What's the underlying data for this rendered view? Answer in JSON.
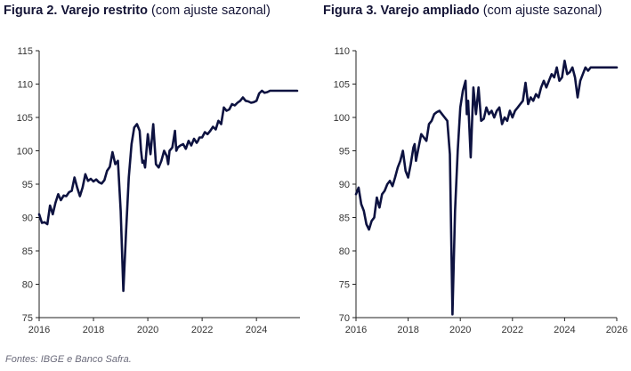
{
  "figures": [
    {
      "title_bold": "Figura 2. Varejo restrito",
      "title_rest": " (com ajuste sazonal)"
    },
    {
      "title_bold": "Figura 3. Varejo ampliado",
      "title_rest": " (com ajuste sazonal)"
    }
  ],
  "source": "Fontes: IBGE e Banco Safra.",
  "colors": {
    "line": "#0d1240",
    "axis": "#222222",
    "text": "#333333"
  },
  "chart_data": [
    {
      "type": "line",
      "title": "Figura 2. Varejo restrito (com ajuste sazonal)",
      "xlabel": "",
      "ylabel": "",
      "ylim": [
        75,
        115
      ],
      "xlim": [
        2016,
        2025.6
      ],
      "yticks": [
        75,
        80,
        85,
        90,
        95,
        100,
        105,
        110,
        115
      ],
      "xticks": [
        2016,
        2018,
        2020,
        2022,
        2024
      ],
      "grid": false,
      "series": [
        {
          "name": "Varejo restrito",
          "x": [
            2016.0,
            2016.1,
            2016.2,
            2016.3,
            2016.4,
            2016.5,
            2016.6,
            2016.7,
            2016.8,
            2016.9,
            2017.0,
            2017.1,
            2017.2,
            2017.3,
            2017.4,
            2017.5,
            2017.6,
            2017.7,
            2017.8,
            2017.9,
            2018.0,
            2018.1,
            2018.2,
            2018.3,
            2018.4,
            2018.5,
            2018.6,
            2018.7,
            2018.8,
            2018.9,
            2019.0,
            2019.1,
            2019.2,
            2019.3,
            2019.4,
            2019.5,
            2019.6,
            2019.7,
            2019.75,
            2019.8,
            2019.85,
            2019.9,
            2020.0,
            2020.1,
            2020.2,
            2020.3,
            2020.4,
            2020.5,
            2020.6,
            2020.7,
            2020.75,
            2020.8,
            2020.9,
            2021.0,
            2021.05,
            2021.1,
            2021.2,
            2021.3,
            2021.4,
            2021.5,
            2021.6,
            2021.7,
            2021.8,
            2021.85,
            2021.9,
            2022.0,
            2022.1,
            2022.2,
            2022.3,
            2022.4,
            2022.5,
            2022.6,
            2022.7,
            2022.8,
            2022.9,
            2023.0,
            2023.1,
            2023.2,
            2023.3,
            2023.4,
            2023.5,
            2023.6,
            2023.7,
            2023.8,
            2023.9,
            2024.0,
            2024.1,
            2024.2,
            2024.3,
            2024.4,
            2024.5,
            2024.6,
            2024.7,
            2024.8,
            2024.9,
            2025.0,
            2025.1,
            2025.2,
            2025.3,
            2025.4,
            2025.5
          ],
          "values": [
            90.5,
            89.2,
            89.3,
            89.0,
            91.8,
            90.5,
            92.2,
            93.5,
            92.6,
            93.3,
            93.2,
            93.8,
            94.0,
            96.0,
            94.5,
            93.2,
            94.5,
            96.5,
            95.5,
            95.8,
            95.4,
            95.7,
            95.3,
            95.1,
            95.6,
            97.0,
            97.6,
            99.8,
            98.0,
            98.5,
            91.0,
            79.0,
            88.0,
            96.0,
            101.0,
            103.5,
            104.0,
            103.0,
            100.0,
            98.2,
            98.5,
            97.5,
            102.5,
            99.5,
            104.0,
            98.0,
            97.5,
            98.5,
            100.0,
            99.2,
            98.0,
            100.0,
            100.5,
            103.0,
            100.0,
            100.5,
            100.8,
            101.0,
            100.3,
            101.5,
            100.8,
            101.8,
            101.2,
            101.5,
            102.0,
            102.0,
            102.8,
            102.5,
            103.0,
            103.6,
            103.2,
            104.5,
            104.0,
            106.5,
            106.0,
            106.2,
            107.0,
            106.8,
            107.2,
            107.5,
            108.0,
            107.5,
            107.4,
            107.2,
            107.3,
            107.5,
            108.6,
            109.0,
            108.7,
            108.8,
            109.0,
            109.0,
            109.0,
            109.0,
            109.0,
            109.0,
            109.0,
            109.0,
            109.0,
            109.0,
            109.0
          ]
        }
      ]
    },
    {
      "type": "line",
      "title": "Figura 3. Varejo ampliado (com ajuste sazonal)",
      "xlabel": "",
      "ylabel": "",
      "ylim": [
        70,
        110
      ],
      "xlim": [
        2016,
        2026
      ],
      "yticks": [
        70,
        75,
        80,
        85,
        90,
        95,
        100,
        105,
        110
      ],
      "xticks": [
        2016,
        2018,
        2020,
        2022,
        2024,
        2026
      ],
      "grid": false,
      "series": [
        {
          "name": "Varejo ampliado",
          "x": [
            2016.0,
            2016.1,
            2016.2,
            2016.3,
            2016.4,
            2016.5,
            2016.6,
            2016.7,
            2016.8,
            2016.9,
            2017.0,
            2017.1,
            2017.2,
            2017.3,
            2017.4,
            2017.5,
            2017.6,
            2017.7,
            2017.8,
            2017.9,
            2018.0,
            2018.1,
            2018.2,
            2018.25,
            2018.3,
            2018.4,
            2018.5,
            2018.6,
            2018.7,
            2018.8,
            2018.9,
            2019.0,
            2019.1,
            2019.2,
            2019.3,
            2019.4,
            2019.5,
            2019.6,
            2019.7,
            2019.8,
            2019.9,
            2020.0,
            2020.1,
            2020.2,
            2020.25,
            2020.3,
            2020.4,
            2020.5,
            2020.6,
            2020.7,
            2020.8,
            2020.9,
            2021.0,
            2021.1,
            2021.2,
            2021.3,
            2021.4,
            2021.5,
            2021.6,
            2021.7,
            2021.8,
            2021.9,
            2022.0,
            2022.1,
            2022.2,
            2022.3,
            2022.4,
            2022.5,
            2022.6,
            2022.7,
            2022.8,
            2022.9,
            2023.0,
            2023.1,
            2023.2,
            2023.3,
            2023.4,
            2023.5,
            2023.6,
            2023.7,
            2023.8,
            2023.9,
            2024.0,
            2024.1,
            2024.2,
            2024.3,
            2024.4,
            2024.5,
            2024.6,
            2024.7,
            2024.8,
            2024.9,
            2025.0,
            2025.1,
            2025.2,
            2025.3,
            2025.4,
            2025.5,
            2025.6,
            2025.7,
            2025.8,
            2025.9,
            2026.0
          ],
          "values": [
            88.5,
            89.5,
            87.0,
            86.0,
            84.0,
            83.2,
            84.5,
            85.0,
            88.0,
            86.5,
            88.5,
            89.0,
            90.0,
            90.5,
            89.7,
            91.0,
            92.5,
            93.5,
            95.0,
            92.0,
            91.0,
            93.0,
            95.5,
            96.0,
            93.5,
            95.5,
            97.5,
            97.0,
            96.5,
            99.0,
            99.5,
            100.5,
            100.8,
            101.0,
            100.5,
            100.0,
            99.5,
            94.5,
            70.5,
            86.0,
            95.0,
            101.5,
            104.0,
            105.5,
            100.5,
            102.5,
            94.0,
            104.5,
            100.5,
            104.5,
            99.5,
            99.8,
            101.5,
            100.5,
            101.0,
            100.0,
            101.0,
            101.5,
            99.0,
            100.0,
            99.5,
            101.0,
            100.0,
            101.0,
            101.5,
            102.0,
            102.5,
            105.2,
            102.0,
            103.0,
            102.5,
            103.5,
            103.0,
            104.5,
            105.5,
            104.5,
            105.5,
            106.5,
            106.0,
            107.5,
            105.5,
            106.0,
            108.5,
            106.5,
            106.8,
            107.5,
            106.0,
            103.0,
            105.5,
            106.5,
            107.5,
            107.0,
            107.5,
            107.5,
            107.5,
            107.5,
            107.5,
            107.5,
            107.5,
            107.5,
            107.5,
            107.5,
            107.5
          ]
        }
      ]
    }
  ]
}
